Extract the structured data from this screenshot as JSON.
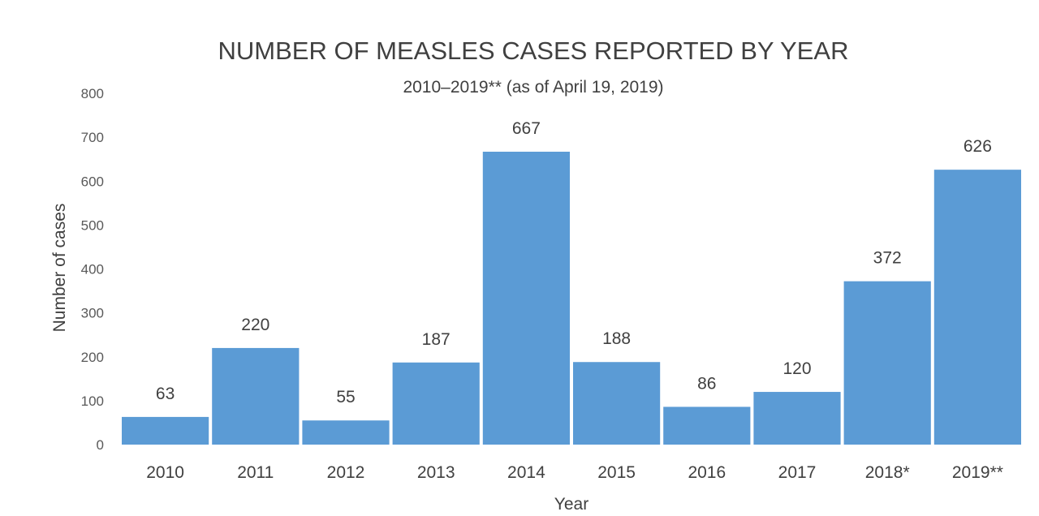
{
  "chart_data": {
    "type": "bar",
    "title": "NUMBER OF MEASLES CASES REPORTED BY YEAR",
    "subtitle": "2010–2019** (as of April 19, 2019)",
    "xlabel": "Year",
    "ylabel": "Number of cases",
    "categories": [
      "2010",
      "2011",
      "2012",
      "2013",
      "2014",
      "2015",
      "2016",
      "2017",
      "2018*",
      "2019**"
    ],
    "values": [
      63,
      220,
      55,
      187,
      667,
      188,
      86,
      120,
      372,
      626
    ],
    "ylim": [
      0,
      800
    ],
    "yticks": [
      0,
      100,
      200,
      300,
      400,
      500,
      600,
      700,
      800
    ],
    "grid": false,
    "legend": "none",
    "bar_color": "#5b9bd5"
  }
}
